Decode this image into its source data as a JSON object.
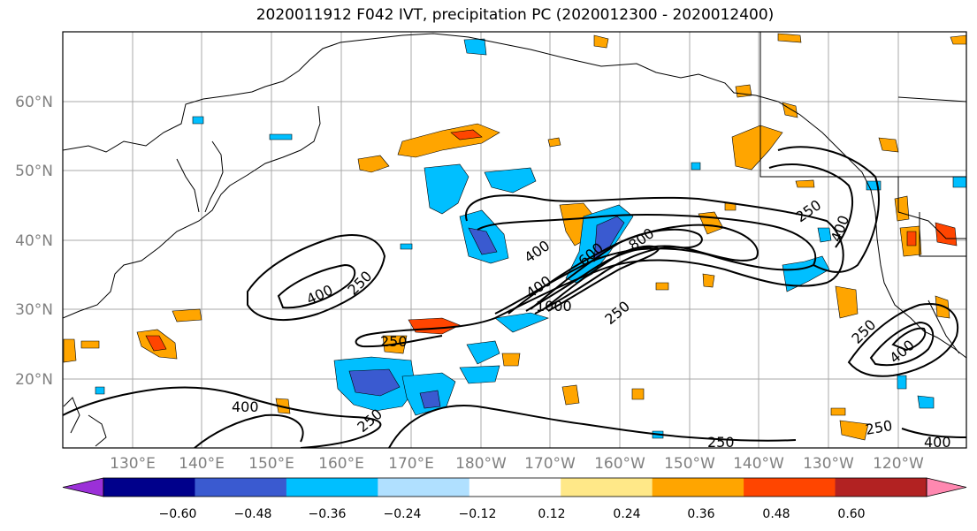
{
  "title": "2020011912 F042 IVT, precipitation PC (2020012300 - 2020012400)",
  "lat_labels": [
    "60°N",
    "50°N",
    "40°N",
    "30°N",
    "20°N"
  ],
  "lon_labels": [
    "130°E",
    "140°E",
    "150°E",
    "160°E",
    "170°E",
    "180°W",
    "170°W",
    "160°W",
    "150°W",
    "140°W",
    "130°W",
    "120°W"
  ],
  "contour_labels": [
    {
      "text": "400"
    },
    {
      "text": "250"
    },
    {
      "text": "250"
    },
    {
      "text": "400"
    },
    {
      "text": "600"
    },
    {
      "text": "800"
    },
    {
      "text": "400"
    },
    {
      "text": "1000"
    },
    {
      "text": "250"
    },
    {
      "text": "250"
    },
    {
      "text": "400"
    },
    {
      "text": "250"
    },
    {
      "text": "400"
    },
    {
      "text": "400"
    },
    {
      "text": "250"
    },
    {
      "text": "250"
    },
    {
      "text": "400"
    },
    {
      "text": "250"
    }
  ],
  "colorbar": {
    "ticks": [
      "−0.60",
      "−0.48",
      "−0.36",
      "−0.24",
      "−0.12",
      "0.12",
      "0.24",
      "0.36",
      "0.48",
      "0.60"
    ],
    "colors": [
      "#9b30d8",
      "#00008b",
      "#3a5ad0",
      "#00bfff",
      "#b0e0ff",
      "#ffffff",
      "#ffe888",
      "#ffa500",
      "#ff4500",
      "#b22222",
      "#ff88b0"
    ]
  }
}
